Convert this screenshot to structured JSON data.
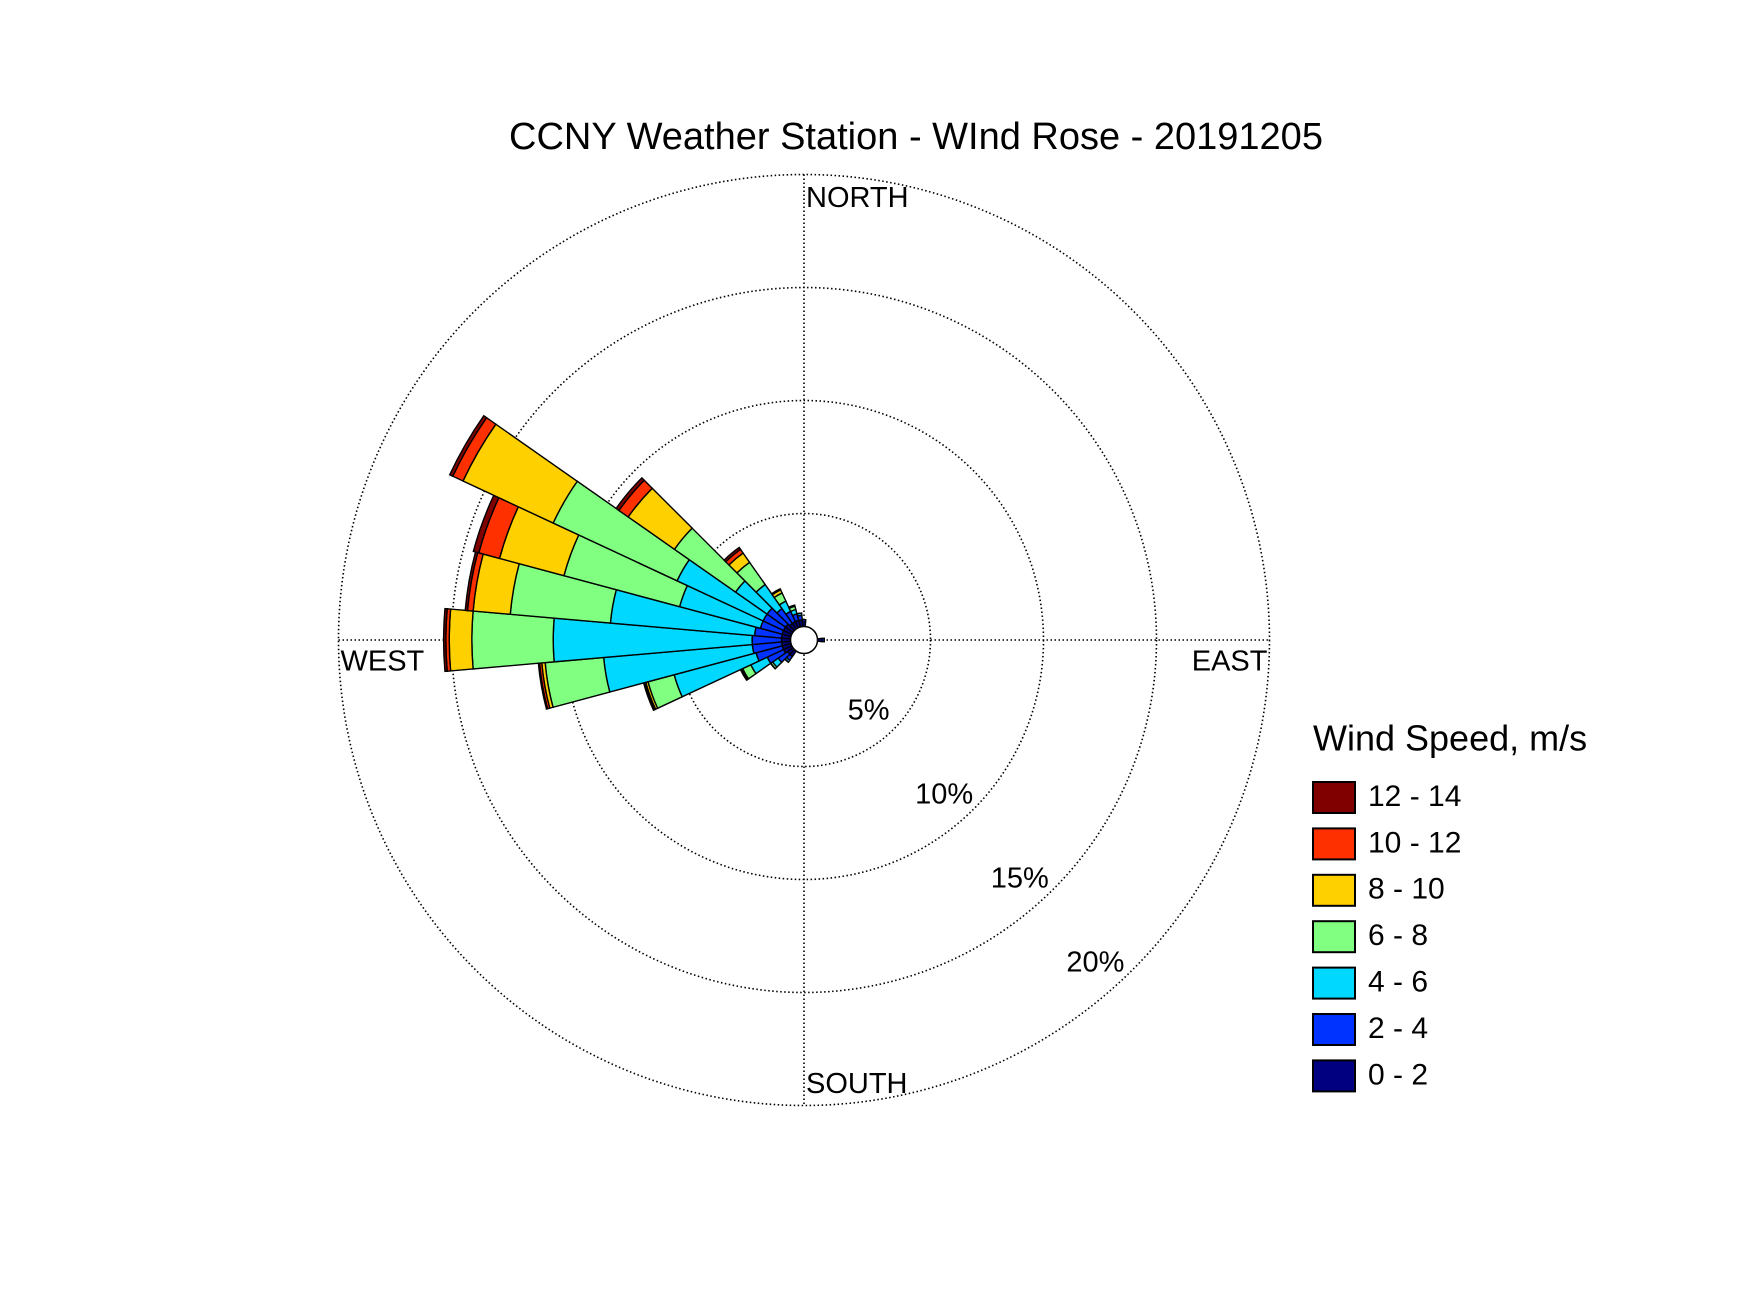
{
  "chart_data": {
    "type": "windrose",
    "title": "CCNY Weather Station - WInd Rose - 20191205",
    "compass_labels": [
      "NORTH",
      "EAST",
      "SOUTH",
      "WEST"
    ],
    "legend_title": "Wind Speed, m/s",
    "directions": [
      90,
      220,
      230,
      240,
      250,
      260,
      270,
      280,
      290,
      300,
      310,
      320,
      330,
      340,
      350,
      360
    ],
    "rlim": [
      0,
      20
    ],
    "rticks": [
      {
        "value": 5,
        "label": "5%"
      },
      {
        "value": 10,
        "label": "10%"
      },
      {
        "value": 15,
        "label": "15%"
      },
      {
        "value": 20,
        "label": "20%"
      }
    ],
    "grid": true,
    "series": [
      {
        "name": "0 - 2",
        "color": "#000080",
        "values": [
          0.2,
          0.3,
          0.3,
          0.4,
          0.4,
          0.4,
          0.4,
          0.4,
          0.4,
          0.4,
          0.4,
          0.3,
          0.3,
          0.3,
          0.3,
          0.2
        ]
      },
      {
        "name": "2 - 4",
        "color": "#0033ff",
        "values": [
          0.1,
          0.2,
          0.5,
          0.8,
          1.2,
          1.3,
          1.3,
          1.2,
          1.0,
          1.0,
          1.0,
          0.8,
          0.5,
          0.3,
          0.2,
          0.1
        ]
      },
      {
        "name": "4 - 6",
        "color": "#00d8ff",
        "values": [
          0,
          0.1,
          0.3,
          0.8,
          3.75,
          6.6,
          8.8,
          6.4,
          3.7,
          4.2,
          1.7,
          1.3,
          0.5,
          0.2,
          0.1,
          0
        ]
      },
      {
        "name": "6 - 8",
        "color": "#80ff80",
        "values": [
          0,
          0,
          0.1,
          0.4,
          1.2,
          2.6,
          3.6,
          4.45,
          5.3,
          6.05,
          3.3,
          1.2,
          0.4,
          0.15,
          0,
          0
        ]
      },
      {
        "name": "8 - 10",
        "color": "#ffd000",
        "values": [
          0,
          0,
          0,
          0.05,
          0.1,
          0.15,
          1.0,
          1.65,
          2.95,
          4.4,
          2.5,
          0.5,
          0.15,
          0.05,
          0,
          0
        ]
      },
      {
        "name": "10 - 12",
        "color": "#ff3000",
        "values": [
          0,
          0,
          0,
          0.05,
          0.05,
          0.1,
          0.15,
          0.25,
          0.95,
          0.5,
          0.5,
          0.2,
          0.05,
          0,
          0,
          0
        ]
      },
      {
        "name": "12 - 14",
        "color": "#800000",
        "values": [
          0,
          0,
          0,
          0,
          0.05,
          0.05,
          0.1,
          0.1,
          0.25,
          0.15,
          0.15,
          0.1,
          0,
          0,
          0,
          0
        ]
      }
    ]
  }
}
